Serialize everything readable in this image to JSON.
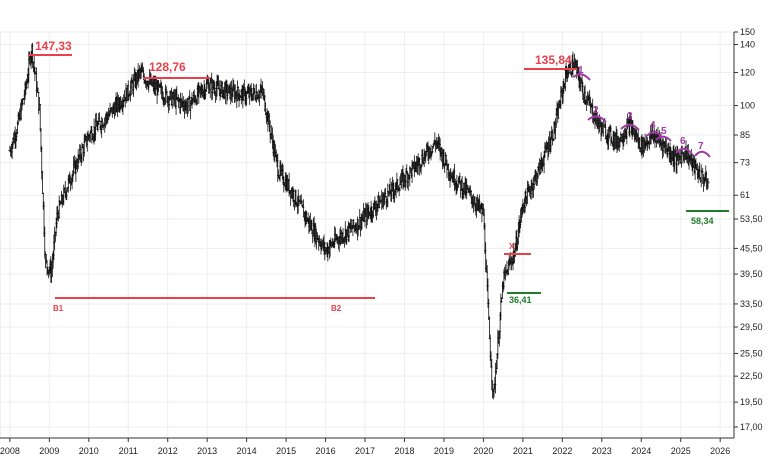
{
  "chart_data": {
    "type": "ohlc",
    "y_scale": "log",
    "ylim": [
      16,
      150
    ],
    "xlim": [
      2007.75,
      2026.35
    ],
    "y_ticks": [
      "150",
      "140",
      "120",
      "100",
      "85",
      "73",
      "61",
      "53,50",
      "45,50",
      "39,50",
      "33,50",
      "29,50",
      "25,50",
      "22,50",
      "19,50",
      "17,00"
    ],
    "x_ticks": [
      "2008",
      "2009",
      "2010",
      "2011",
      "2012",
      "2013",
      "2014",
      "2015",
      "2016",
      "2017",
      "2018",
      "2019",
      "2020",
      "2021",
      "2022",
      "2023",
      "2024",
      "2025",
      "2026"
    ],
    "grid": true,
    "series": [
      {
        "x": [
          2008.0,
          2008.2,
          2008.4,
          2008.55,
          2008.75,
          2008.9,
          2009.05,
          2009.2,
          2009.5,
          2010.0,
          2010.5,
          2011.0,
          2011.3,
          2011.6,
          2012.0,
          2012.5,
          2013.0,
          2013.5,
          2014.0,
          2014.4,
          2014.8,
          2015.2,
          2015.6,
          2016.0,
          2016.3,
          2016.8,
          2017.3,
          2017.8,
          2018.3,
          2018.8,
          2019.2,
          2019.6,
          2020.0,
          2020.15,
          2020.25,
          2020.5,
          2020.8,
          2021.0,
          2021.4,
          2021.8,
          2022.1,
          2022.3,
          2022.5,
          2022.8,
          2023.0,
          2023.4,
          2023.7,
          2024.0,
          2024.3,
          2024.6,
          2024.9,
          2025.1,
          2025.4,
          2025.7
        ],
        "y": [
          78,
          90,
          110,
          138,
          98,
          42,
          40,
          55,
          66,
          85,
          95,
          108,
          120,
          112,
          105,
          100,
          112,
          108,
          106,
          108,
          70,
          61,
          52,
          45,
          48,
          52,
          58,
          64,
          72,
          82,
          68,
          62,
          55,
          28,
          20,
          38,
          45,
          58,
          70,
          88,
          120,
          126,
          110,
          95,
          88,
          82,
          90,
          80,
          85,
          80,
          74,
          78,
          70,
          65
        ]
      }
    ],
    "annotations": {
      "high_2008": "147,33",
      "high_2011": "128,76",
      "high_2022": "135,84",
      "low_b1": "B1",
      "low_b2": "B2",
      "x_mark": "X",
      "low_2020": "36,41",
      "low_2025": "58,34",
      "peaks": [
        "1",
        "2",
        "3",
        "4",
        "5",
        "6",
        "7"
      ]
    }
  }
}
